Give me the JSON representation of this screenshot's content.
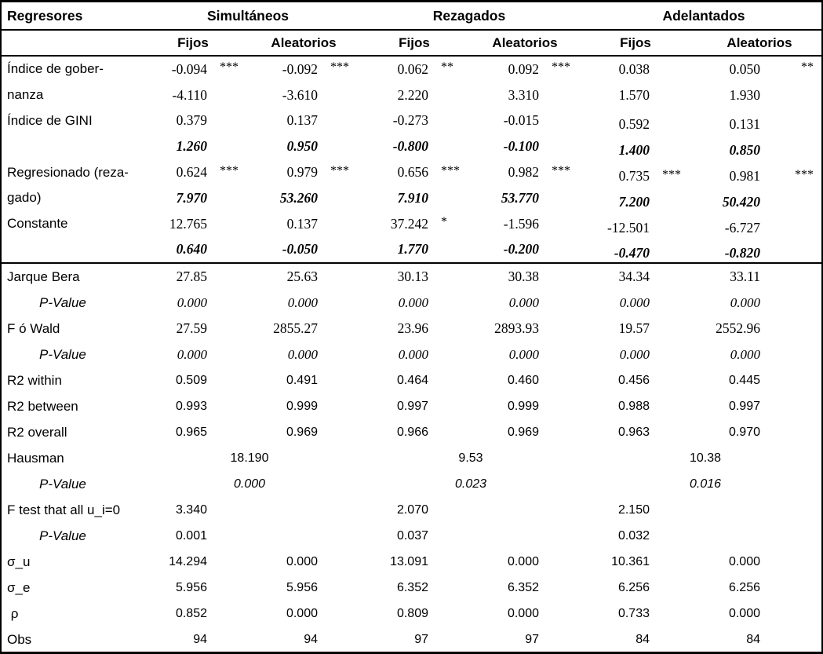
{
  "table": {
    "corner_label": "Regresores",
    "sections": [
      {
        "label": "Simultáneos"
      },
      {
        "label": "Rezagados"
      },
      {
        "label": "Adelantados"
      }
    ],
    "sub_headers": [
      "Fijos",
      "Aleatorios",
      "Fijos",
      "Aleatorios",
      "Fijos",
      "Aleatorios"
    ],
    "rows": [
      {
        "label": "Índice de gober-",
        "num_class": "n-serif",
        "cells": [
          "-0.094",
          "-0.092",
          "0.062",
          "0.092",
          "0.038",
          "0.050"
        ],
        "stars": [
          "***",
          "***",
          "**",
          "***",
          "",
          "**"
        ]
      },
      {
        "label": "nanza",
        "num_class": "n-serif",
        "cells": [
          "-4.110",
          "-3.610",
          "2.220",
          "3.310",
          "1.570",
          "1.930"
        ]
      },
      {
        "label": "Índice de GINI",
        "num_class": "n-serif",
        "shift_adel": true,
        "cells": [
          "0.379",
          "0.137",
          "-0.273",
          "-0.015",
          "0.592",
          "0.131"
        ]
      },
      {
        "label": "",
        "num_class": "n-bi",
        "shift_adel": true,
        "cells": [
          "1.260",
          "0.950",
          "-0.800",
          "-0.100",
          "1.400",
          "0.850"
        ]
      },
      {
        "label": "Regresionado (reza-",
        "num_class": "n-serif",
        "shift_adel": true,
        "cells": [
          "0.624",
          "0.979",
          "0.656",
          "0.982",
          "0.735",
          "0.981"
        ],
        "stars": [
          "***",
          "***",
          "***",
          "***",
          "***",
          "***"
        ]
      },
      {
        "label": "gado)",
        "num_class": "n-bi",
        "shift_adel": true,
        "cells": [
          "7.970",
          "53.260",
          "7.910",
          "53.770",
          "7.200",
          "50.420"
        ]
      },
      {
        "label": "Constante",
        "num_class": "n-serif",
        "shift_adel": true,
        "cells": [
          "12.765",
          "0.137",
          "37.242",
          "-1.596",
          "-12.501",
          "-6.727"
        ],
        "stars": [
          "",
          "",
          "*",
          "",
          "",
          ""
        ]
      },
      {
        "label": "",
        "num_class": "n-bi",
        "shift_adel": true,
        "divider_after": true,
        "cells": [
          "0.640",
          "-0.050",
          "1.770",
          "-0.200",
          "-0.470",
          "-0.820"
        ]
      },
      {
        "label": "Jarque Bera",
        "num_class": "n-serif",
        "stat": true,
        "cells": [
          "27.85",
          "25.63",
          "30.13",
          "30.38",
          "34.34",
          "33.11"
        ]
      },
      {
        "label": "P-Value",
        "label_class": "pv",
        "num_class": "n-si",
        "stat": true,
        "cells": [
          "0.000",
          "0.000",
          "0.000",
          "0.000",
          "0.000",
          "0.000"
        ]
      },
      {
        "label": "F ó Wald",
        "num_class": "n-serif",
        "stat": true,
        "cells": [
          "27.59",
          "2855.27",
          "23.96",
          "2893.93",
          "19.57",
          "2552.96"
        ]
      },
      {
        "label": "P-Value",
        "label_class": "pv",
        "num_class": "n-si",
        "stat": true,
        "cells": [
          "0.000",
          "0.000",
          "0.000",
          "0.000",
          "0.000",
          "0.000"
        ]
      },
      {
        "label": "R2 within",
        "num_class": "n-sans",
        "stat": true,
        "cells": [
          "0.509",
          "0.491",
          "0.464",
          "0.460",
          "0.456",
          "0.445"
        ]
      },
      {
        "label": "R2 between",
        "num_class": "n-sans",
        "stat": true,
        "cells": [
          "0.993",
          "0.999",
          "0.997",
          "0.999",
          "0.988",
          "0.997"
        ]
      },
      {
        "label": "R2 overall",
        "num_class": "n-sans",
        "stat": true,
        "cells": [
          "0.965",
          "0.969",
          "0.966",
          "0.969",
          "0.963",
          "0.970"
        ]
      },
      {
        "label": "Hausman",
        "num_class": "n-sans",
        "stat": true,
        "merged": [
          "18.190",
          "9.53",
          "10.38"
        ]
      },
      {
        "label": "P-Value",
        "label_class": "pv",
        "num_class": "n-sans-i",
        "stat": true,
        "merged": [
          "0.000",
          "0.023",
          "0.016"
        ]
      },
      {
        "label": "F test that all u_i=0",
        "num_class": "n-sans",
        "stat": true,
        "cells": [
          "3.340",
          "",
          "2.070",
          "",
          "2.150",
          ""
        ]
      },
      {
        "label": "P-Value",
        "label_class": "pv",
        "num_class": "n-sans",
        "stat": true,
        "cells": [
          "0.001",
          "",
          "0.037",
          "",
          "0.032",
          ""
        ]
      },
      {
        "label": "σ_u",
        "num_class": "n-sans",
        "stat": true,
        "cells": [
          "14.294",
          "0.000",
          "13.091",
          "0.000",
          "10.361",
          "0.000"
        ]
      },
      {
        "label": "σ_e",
        "num_class": "n-sans",
        "stat": true,
        "cells": [
          "5.956",
          "5.956",
          "6.352",
          "6.352",
          "6.256",
          "6.256"
        ]
      },
      {
        "label": " ρ",
        "num_class": "n-sans",
        "stat": true,
        "cells": [
          "0.852",
          "0.000",
          "0.809",
          "0.000",
          "0.733",
          "0.000"
        ]
      },
      {
        "label": "Obs",
        "num_class": "n-sans",
        "stat": true,
        "cells": [
          "94",
          "94",
          "97",
          "97",
          "84",
          "84"
        ]
      }
    ]
  }
}
